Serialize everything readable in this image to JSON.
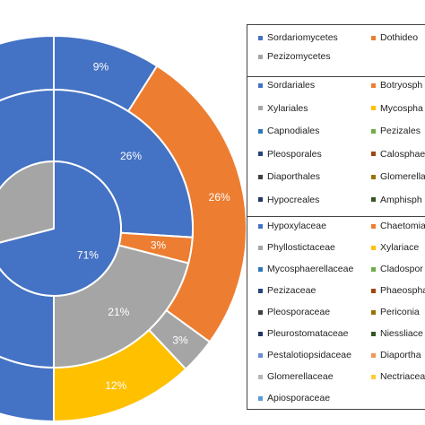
{
  "chart_data": {
    "type": "pie",
    "subtype": "multi-level donut",
    "rings": [
      {
        "name": "inner",
        "slices": [
          {
            "label": "71%",
            "value": 71,
            "color": "#4472C4"
          },
          {
            "label": "",
            "value": 29,
            "color": "#A5A5A5"
          }
        ]
      },
      {
        "name": "middle",
        "slices": [
          {
            "label": "26%",
            "value": 26,
            "color": "#4472C4"
          },
          {
            "label": "3%",
            "value": 3,
            "color": "#ED7D31"
          },
          {
            "label": "21%",
            "value": 21,
            "color": "#A5A5A5"
          },
          {
            "label": "",
            "value": 50,
            "color": "#4472C4"
          }
        ]
      },
      {
        "name": "outer",
        "slices": [
          {
            "label": "9%",
            "value": 9,
            "color": "#4472C4"
          },
          {
            "label": "26%",
            "value": 26,
            "color": "#ED7D31"
          },
          {
            "label": "3%",
            "value": 3,
            "color": "#A5A5A5"
          },
          {
            "label": "12%",
            "value": 12,
            "color": "#FFC000"
          },
          {
            "label": "",
            "value": 50,
            "color": "#4472C4"
          }
        ]
      }
    ],
    "legend": {
      "placement": "right",
      "groups": [
        {
          "items": [
            {
              "label": "Sordariomycetes",
              "color": "#4472C4"
            },
            {
              "label": "Dothideo",
              "color": "#ED7D31"
            },
            {
              "label": "Pezizomycetes",
              "color": "#A5A5A5"
            }
          ]
        },
        {
          "items": [
            {
              "label": "Sordariales",
              "color": "#4472C4"
            },
            {
              "label": "Botryosph",
              "color": "#ED7D31"
            },
            {
              "label": "Xylariales",
              "color": "#A5A5A5"
            },
            {
              "label": "Mycospha",
              "color": "#FFC000"
            },
            {
              "label": "Capnodiales",
              "color": "#2E75B6"
            },
            {
              "label": "Pezizales",
              "color": "#70AD47"
            },
            {
              "label": "Pleosporales",
              "color": "#264478"
            },
            {
              "label": "Calosphae",
              "color": "#9E480E"
            },
            {
              "label": "Diaporthales",
              "color": "#404040"
            },
            {
              "label": "Glomerella",
              "color": "#997300"
            },
            {
              "label": "Hypocreales",
              "color": "#203864"
            },
            {
              "label": "Amphisph",
              "color": "#375623"
            }
          ]
        },
        {
          "items": [
            {
              "label": "Hypoxylaceae",
              "color": "#4472C4"
            },
            {
              "label": "Chaetomia",
              "color": "#ED7D31"
            },
            {
              "label": "Phyllostictaceae",
              "color": "#A5A5A5"
            },
            {
              "label": "Xylariace",
              "color": "#FFC000"
            },
            {
              "label": "Mycosphaerellaceae",
              "color": "#2E75B6"
            },
            {
              "label": "Cladospor",
              "color": "#70AD47"
            },
            {
              "label": "Pezizaceae",
              "color": "#264478"
            },
            {
              "label": "Phaeospha",
              "color": "#9E480E"
            },
            {
              "label": "Pleosporaceae",
              "color": "#404040"
            },
            {
              "label": "Periconia",
              "color": "#997300"
            },
            {
              "label": "Pleurostomataceae",
              "color": "#203864"
            },
            {
              "label": "Niessliace",
              "color": "#375623"
            },
            {
              "label": "Pestalotiopsidaceae",
              "color": "#698ED0"
            },
            {
              "label": "Diaportha",
              "color": "#F1975A"
            },
            {
              "label": "Glomerellaceae",
              "color": "#B7B7B7"
            },
            {
              "label": "Nectriacea",
              "color": "#FFCD33"
            },
            {
              "label": "Apiosporaceae",
              "color": "#5B9BD5"
            }
          ]
        }
      ]
    }
  }
}
